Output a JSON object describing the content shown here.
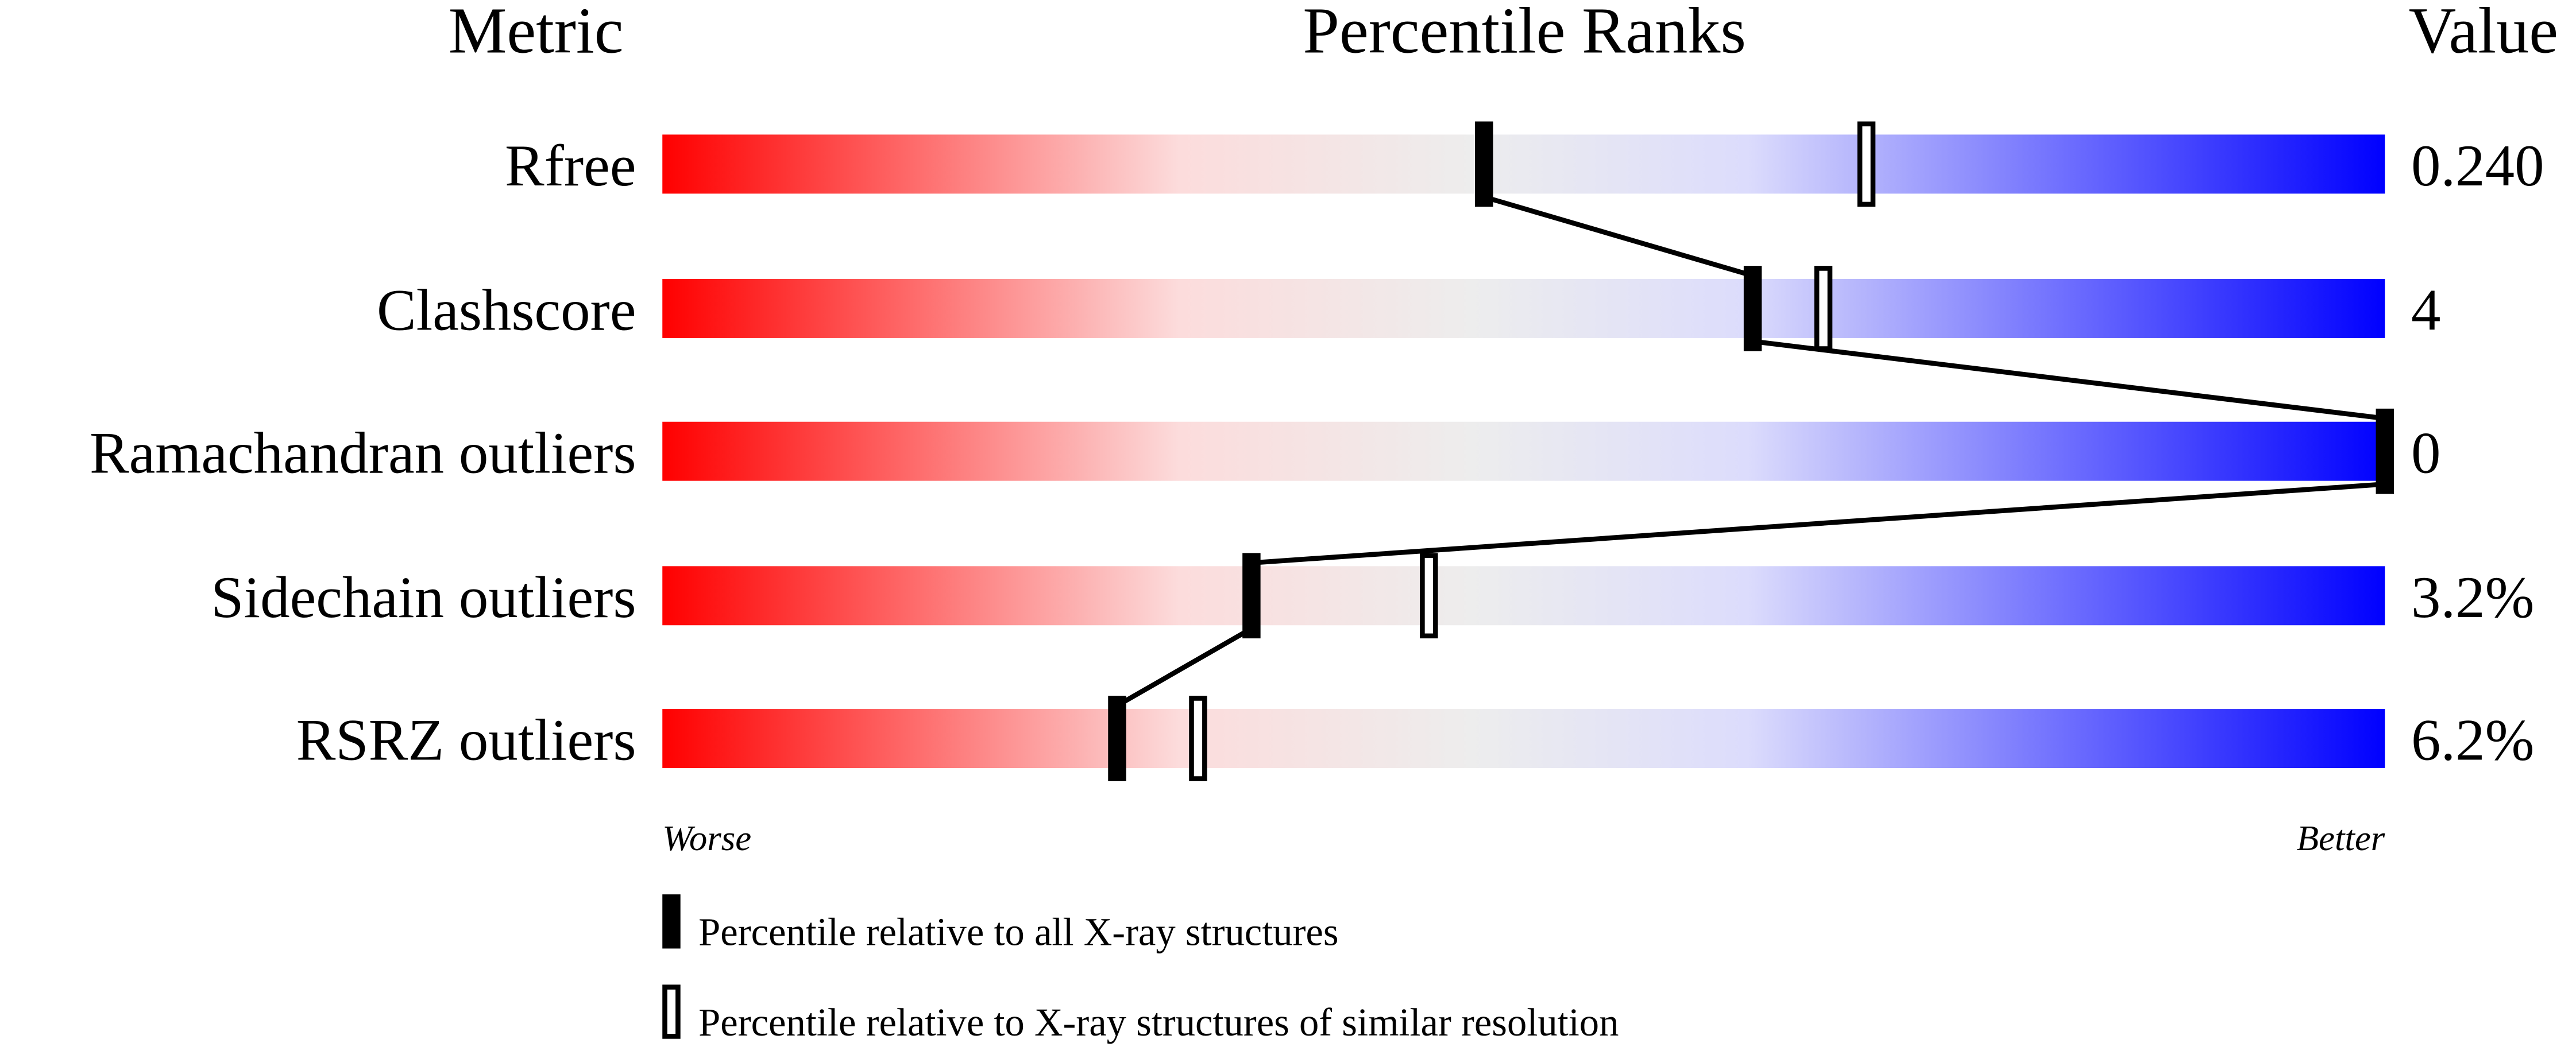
{
  "chart_data": {
    "type": "percentile-rank-bars",
    "headers": {
      "metric": "Metric",
      "percentile": "Percentile Ranks",
      "value": "Value"
    },
    "xlim": [
      0,
      100
    ],
    "gradient_colors": [
      "#ff0000",
      "#fcdcdc",
      "#ededed",
      "#dcdcfc",
      "#0000ff"
    ],
    "rows": [
      {
        "metric": "Rfree",
        "value": "0.240",
        "percentile_all": 47.7,
        "percentile_similar": 69.9
      },
      {
        "metric": "Clashscore",
        "value": "4",
        "percentile_all": 63.3,
        "percentile_similar": 67.4
      },
      {
        "metric": "Ramachandran outliers",
        "value": "0",
        "percentile_all": 100,
        "percentile_similar": 100
      },
      {
        "metric": "Sidechain outliers",
        "value": "3.2%",
        "percentile_all": 34.2,
        "percentile_similar": 44.5
      },
      {
        "metric": "RSRZ outliers",
        "value": "6.2%",
        "percentile_all": 26.4,
        "percentile_similar": 31.1
      }
    ],
    "axis_labels": {
      "worse": "Worse",
      "better": "Better"
    },
    "legend": [
      {
        "marker": "filled",
        "label": "Percentile relative to all X-ray structures"
      },
      {
        "marker": "open",
        "label": "Percentile relative to X-ray structures of similar resolution"
      }
    ]
  }
}
